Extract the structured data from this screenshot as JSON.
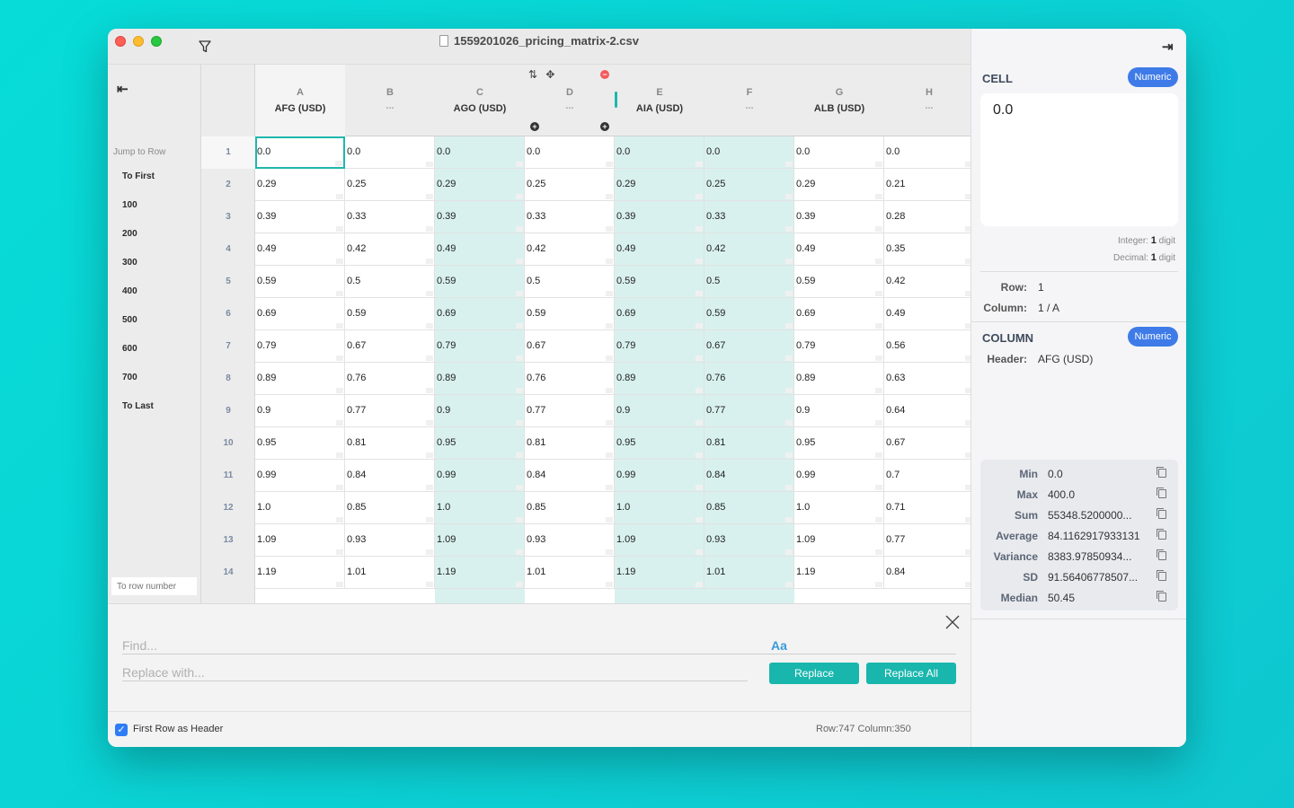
{
  "window": {
    "title": "1559201026_pricing_matrix-2.csv"
  },
  "sidebar": {
    "jump_label": "Jump to Row",
    "items": [
      "To First",
      "100",
      "200",
      "300",
      "400",
      "500",
      "600",
      "700",
      "To Last"
    ],
    "row_number_placeholder": "To row number"
  },
  "grid": {
    "columns": [
      {
        "letter": "A",
        "title": "AFG (USD)"
      },
      {
        "letter": "B",
        "title": "..."
      },
      {
        "letter": "C",
        "title": "AGO (USD)"
      },
      {
        "letter": "D",
        "title": "..."
      },
      {
        "letter": "E",
        "title": "AIA (USD)"
      },
      {
        "letter": "F",
        "title": "..."
      },
      {
        "letter": "G",
        "title": "ALB (USD)"
      },
      {
        "letter": "H",
        "title": "..."
      }
    ],
    "header_tools": {
      "sort_icon": "sort-icon",
      "move_icon": "move-column-icon",
      "remove": "−",
      "add": "+"
    },
    "rows": [
      {
        "n": "1",
        "v": [
          "0.0",
          "0.0",
          "0.0",
          "0.0",
          "0.0",
          "0.0",
          "0.0",
          "0.0"
        ]
      },
      {
        "n": "2",
        "v": [
          "0.29",
          "0.25",
          "0.29",
          "0.25",
          "0.29",
          "0.25",
          "0.29",
          "0.21"
        ]
      },
      {
        "n": "3",
        "v": [
          "0.39",
          "0.33",
          "0.39",
          "0.33",
          "0.39",
          "0.33",
          "0.39",
          "0.28"
        ]
      },
      {
        "n": "4",
        "v": [
          "0.49",
          "0.42",
          "0.49",
          "0.42",
          "0.49",
          "0.42",
          "0.49",
          "0.35"
        ]
      },
      {
        "n": "5",
        "v": [
          "0.59",
          "0.5",
          "0.59",
          "0.5",
          "0.59",
          "0.5",
          "0.59",
          "0.42"
        ]
      },
      {
        "n": "6",
        "v": [
          "0.69",
          "0.59",
          "0.69",
          "0.59",
          "0.69",
          "0.59",
          "0.69",
          "0.49"
        ]
      },
      {
        "n": "7",
        "v": [
          "0.79",
          "0.67",
          "0.79",
          "0.67",
          "0.79",
          "0.67",
          "0.79",
          "0.56"
        ]
      },
      {
        "n": "8",
        "v": [
          "0.89",
          "0.76",
          "0.89",
          "0.76",
          "0.89",
          "0.76",
          "0.89",
          "0.63"
        ]
      },
      {
        "n": "9",
        "v": [
          "0.9",
          "0.77",
          "0.9",
          "0.77",
          "0.9",
          "0.77",
          "0.9",
          "0.64"
        ]
      },
      {
        "n": "10",
        "v": [
          "0.95",
          "0.81",
          "0.95",
          "0.81",
          "0.95",
          "0.81",
          "0.95",
          "0.67"
        ]
      },
      {
        "n": "11",
        "v": [
          "0.99",
          "0.84",
          "0.99",
          "0.84",
          "0.99",
          "0.84",
          "0.99",
          "0.7"
        ]
      },
      {
        "n": "12",
        "v": [
          "1.0",
          "0.85",
          "1.0",
          "0.85",
          "1.0",
          "0.85",
          "1.0",
          "0.71"
        ]
      },
      {
        "n": "13",
        "v": [
          "1.09",
          "0.93",
          "1.09",
          "0.93",
          "1.09",
          "0.93",
          "1.09",
          "0.77"
        ]
      },
      {
        "n": "14",
        "v": [
          "1.19",
          "1.01",
          "1.19",
          "1.01",
          "1.19",
          "1.01",
          "1.19",
          "0.84"
        ]
      }
    ]
  },
  "find": {
    "find_placeholder": "Find...",
    "replace_placeholder": "Replace with...",
    "case_label": "Aa",
    "replace_label": "Replace",
    "replace_all_label": "Replace All"
  },
  "status": {
    "first_row_header_label": "First Row as Header",
    "counts": "Row:747 Column:350"
  },
  "inspector": {
    "cell_title": "CELL",
    "cell_type": "Numeric",
    "cell_value": "0.0",
    "integer_label": "Integer:",
    "integer_value": "1",
    "decimal_label": "Decimal:",
    "decimal_value": "1",
    "digit_word": "digit",
    "row_label": "Row:",
    "row_value": "1",
    "column_label": "Column:",
    "column_value": "1 / A",
    "column_title": "COLUMN",
    "column_type": "Numeric",
    "header_label": "Header:",
    "header_value": "AFG (USD)",
    "stats": [
      {
        "label": "Min",
        "value": "0.0"
      },
      {
        "label": "Max",
        "value": "400.0"
      },
      {
        "label": "Sum",
        "value": "55348.5200000..."
      },
      {
        "label": "Average",
        "value": "84.1162917933131"
      },
      {
        "label": "Variance",
        "value": "8383.97850934..."
      },
      {
        "label": "SD",
        "value": "91.56406778507..."
      },
      {
        "label": "Median",
        "value": "50.45"
      }
    ]
  },
  "colors": {
    "accent": "#19b6ad",
    "pill": "#3f7be8",
    "teal_band": "#d8f1ee"
  }
}
